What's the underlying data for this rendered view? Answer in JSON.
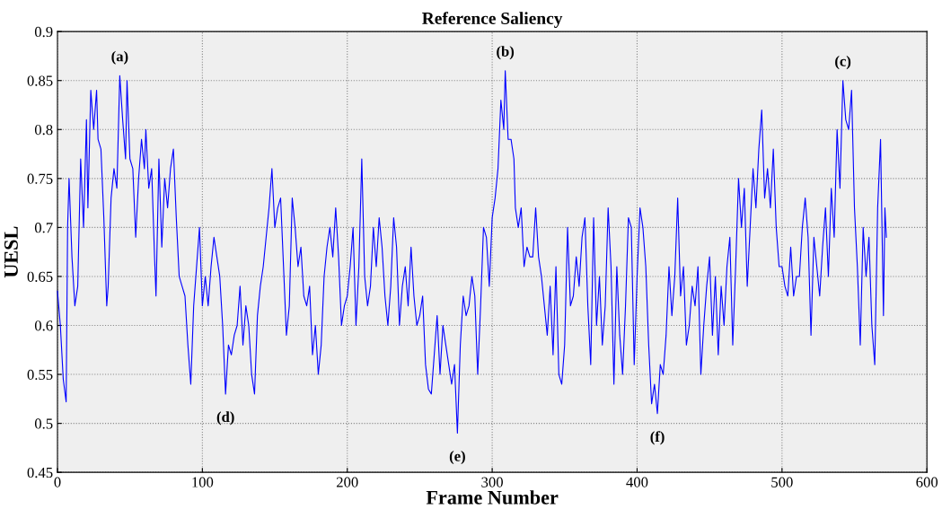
{
  "chart_data": {
    "type": "line",
    "title": "Reference Saliency",
    "xlabel": "Frame Number",
    "ylabel": "UESL",
    "x": [
      0,
      2,
      4,
      6,
      7,
      8,
      10,
      12,
      14,
      16,
      18,
      20,
      21,
      23,
      25,
      27,
      28,
      30,
      32,
      34,
      35,
      37,
      39,
      41,
      43,
      45,
      47,
      48,
      50,
      52,
      54,
      56,
      58,
      60,
      61,
      63,
      65,
      67,
      68,
      70,
      72,
      74,
      76,
      78,
      80,
      82,
      84,
      86,
      88,
      90,
      92,
      94,
      96,
      98,
      100,
      102,
      104,
      106,
      108,
      110,
      112,
      114,
      116,
      118,
      120,
      122,
      124,
      126,
      128,
      130,
      132,
      134,
      136,
      138,
      140,
      142,
      144,
      146,
      148,
      150,
      152,
      154,
      156,
      158,
      160,
      162,
      164,
      166,
      168,
      170,
      172,
      174,
      176,
      178,
      180,
      182,
      184,
      186,
      188,
      190,
      192,
      194,
      196,
      198,
      200,
      202,
      204,
      206,
      208,
      210,
      212,
      214,
      216,
      218,
      220,
      222,
      224,
      226,
      228,
      230,
      232,
      234,
      236,
      238,
      240,
      242,
      244,
      246,
      248,
      250,
      252,
      254,
      256,
      258,
      260,
      262,
      264,
      266,
      268,
      270,
      272,
      274,
      276,
      278,
      280,
      282,
      284,
      286,
      288,
      290,
      292,
      294,
      296,
      298,
      300,
      302,
      304,
      306,
      308,
      309,
      311,
      313,
      315,
      316,
      318,
      320,
      322,
      324,
      326,
      328,
      330,
      332,
      334,
      336,
      338,
      340,
      342,
      344,
      346,
      348,
      350,
      352,
      354,
      356,
      358,
      360,
      362,
      364,
      366,
      368,
      370,
      372,
      374,
      376,
      378,
      380,
      382,
      384,
      386,
      388,
      390,
      392,
      394,
      396,
      398,
      400,
      402,
      404,
      406,
      408,
      410,
      412,
      414,
      416,
      418,
      420,
      422,
      424,
      426,
      428,
      430,
      432,
      434,
      436,
      438,
      440,
      442,
      444,
      446,
      448,
      450,
      452,
      454,
      456,
      458,
      460,
      462,
      464,
      466,
      468,
      470,
      472,
      474,
      476,
      478,
      480,
      482,
      484,
      486,
      488,
      490,
      492,
      494,
      496,
      498,
      500,
      502,
      504,
      506,
      508,
      510,
      512,
      514,
      516,
      518,
      520,
      522,
      524,
      526,
      528,
      530,
      532,
      534,
      536,
      538,
      540,
      542,
      544,
      546,
      548,
      550,
      552,
      554,
      556,
      558,
      560,
      562,
      564,
      566,
      568,
      570,
      571,
      572
    ],
    "series": [
      {
        "color": "#0000ff",
        "values": [
          0.635,
          0.6,
          0.545,
          0.522,
          0.7,
          0.75,
          0.67,
          0.62,
          0.64,
          0.77,
          0.7,
          0.81,
          0.72,
          0.84,
          0.8,
          0.84,
          0.79,
          0.78,
          0.71,
          0.62,
          0.64,
          0.73,
          0.76,
          0.74,
          0.855,
          0.81,
          0.77,
          0.85,
          0.77,
          0.76,
          0.69,
          0.75,
          0.79,
          0.76,
          0.8,
          0.74,
          0.76,
          0.67,
          0.63,
          0.77,
          0.68,
          0.75,
          0.72,
          0.76,
          0.78,
          0.71,
          0.65,
          0.64,
          0.63,
          0.58,
          0.54,
          0.62,
          0.66,
          0.7,
          0.62,
          0.65,
          0.62,
          0.66,
          0.69,
          0.67,
          0.65,
          0.6,
          0.53,
          0.58,
          0.57,
          0.59,
          0.6,
          0.64,
          0.58,
          0.62,
          0.6,
          0.55,
          0.53,
          0.61,
          0.64,
          0.66,
          0.69,
          0.72,
          0.76,
          0.7,
          0.72,
          0.73,
          0.66,
          0.59,
          0.62,
          0.73,
          0.7,
          0.66,
          0.68,
          0.63,
          0.62,
          0.64,
          0.57,
          0.6,
          0.55,
          0.58,
          0.65,
          0.68,
          0.7,
          0.67,
          0.72,
          0.67,
          0.6,
          0.62,
          0.63,
          0.66,
          0.7,
          0.6,
          0.66,
          0.77,
          0.65,
          0.62,
          0.64,
          0.7,
          0.66,
          0.71,
          0.68,
          0.63,
          0.6,
          0.64,
          0.71,
          0.68,
          0.6,
          0.64,
          0.66,
          0.62,
          0.68,
          0.63,
          0.6,
          0.61,
          0.63,
          0.56,
          0.535,
          0.53,
          0.57,
          0.61,
          0.55,
          0.6,
          0.58,
          0.56,
          0.54,
          0.56,
          0.49,
          0.58,
          0.63,
          0.61,
          0.62,
          0.65,
          0.63,
          0.55,
          0.62,
          0.7,
          0.69,
          0.64,
          0.71,
          0.73,
          0.76,
          0.83,
          0.8,
          0.86,
          0.79,
          0.79,
          0.77,
          0.72,
          0.7,
          0.72,
          0.66,
          0.68,
          0.67,
          0.67,
          0.72,
          0.67,
          0.65,
          0.62,
          0.59,
          0.64,
          0.57,
          0.66,
          0.55,
          0.54,
          0.58,
          0.7,
          0.62,
          0.63,
          0.67,
          0.64,
          0.69,
          0.71,
          0.62,
          0.56,
          0.71,
          0.6,
          0.65,
          0.58,
          0.62,
          0.72,
          0.66,
          0.54,
          0.66,
          0.59,
          0.55,
          0.62,
          0.71,
          0.7,
          0.56,
          0.65,
          0.72,
          0.7,
          0.66,
          0.58,
          0.52,
          0.54,
          0.51,
          0.56,
          0.55,
          0.59,
          0.66,
          0.61,
          0.65,
          0.73,
          0.63,
          0.66,
          0.58,
          0.6,
          0.64,
          0.62,
          0.66,
          0.55,
          0.6,
          0.64,
          0.67,
          0.59,
          0.65,
          0.57,
          0.64,
          0.6,
          0.66,
          0.69,
          0.58,
          0.66,
          0.75,
          0.7,
          0.74,
          0.64,
          0.7,
          0.76,
          0.72,
          0.78,
          0.82,
          0.73,
          0.76,
          0.72,
          0.78,
          0.7,
          0.66,
          0.66,
          0.64,
          0.63,
          0.68,
          0.63,
          0.65,
          0.65,
          0.7,
          0.73,
          0.69,
          0.59,
          0.69,
          0.66,
          0.63,
          0.68,
          0.72,
          0.65,
          0.74,
          0.69,
          0.8,
          0.74,
          0.85,
          0.81,
          0.8,
          0.84,
          0.72,
          0.66,
          0.58,
          0.7,
          0.65,
          0.69,
          0.6,
          0.56,
          0.72,
          0.79,
          0.61,
          0.72,
          0.69
        ]
      }
    ],
    "xlim": [
      0,
      600
    ],
    "xticks": [
      0,
      100,
      200,
      300,
      400,
      500,
      600
    ],
    "ylim": [
      0.45,
      0.9
    ],
    "yticks": [
      0.45,
      0.5,
      0.55,
      0.6,
      0.65,
      0.7,
      0.75,
      0.8,
      0.85,
      0.9
    ],
    "grid": true,
    "line_style": "solid",
    "marker": "none",
    "annotations": [
      {
        "text": "(a)",
        "x": 43,
        "y": 0.855
      },
      {
        "text": "(b)",
        "x": 309,
        "y": 0.86
      },
      {
        "text": "(c)",
        "x": 542,
        "y": 0.85
      },
      {
        "text": "(d)",
        "x": 116,
        "y": 0.53
      },
      {
        "text": "(e)",
        "x": 276,
        "y": 0.49
      },
      {
        "text": "(f)",
        "x": 414,
        "y": 0.51
      }
    ]
  }
}
